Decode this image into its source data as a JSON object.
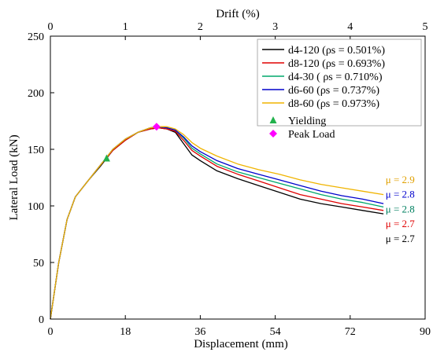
{
  "chart_data": {
    "type": "line",
    "xlabel": "Displacement (mm)",
    "ylabel": "Lateral Load (kN)",
    "x2label": "Drift (%)",
    "xlim": [
      0,
      90
    ],
    "ylim": [
      0,
      250
    ],
    "x2lim": [
      0,
      5
    ],
    "xticks": [
      "0",
      "18",
      "36",
      "54",
      "72",
      "90"
    ],
    "yticks": [
      "0",
      "50",
      "100",
      "150",
      "200",
      "250"
    ],
    "x2ticks": [
      "0",
      "1",
      "2",
      "3",
      "4",
      "5"
    ],
    "grid": false,
    "legend_position": "top-right",
    "series": [
      {
        "name": "d4-120 (ρs = 0.501%)",
        "color": "#000000",
        "x": [
          0,
          2,
          4,
          6,
          9,
          12,
          15,
          18,
          21,
          24,
          26,
          28,
          30,
          32,
          34,
          36,
          40,
          45,
          50,
          55,
          60,
          65,
          70,
          75,
          80
        ],
        "y": [
          0,
          50,
          88,
          108,
          122,
          135,
          149,
          158,
          165,
          168,
          169,
          168,
          165,
          155,
          145,
          140,
          131,
          124,
          118,
          112,
          106,
          102,
          99,
          96,
          93
        ]
      },
      {
        "name": "d8-120 (ρs = 0.693%)",
        "color": "#e00000",
        "x": [
          0,
          2,
          4,
          6,
          9,
          12,
          15,
          18,
          21,
          24,
          26,
          28,
          30,
          32,
          34,
          36,
          40,
          45,
          50,
          55,
          60,
          65,
          70,
          75,
          80
        ],
        "y": [
          0,
          50,
          88,
          108,
          122,
          136,
          149,
          158,
          165,
          168,
          169,
          168,
          166,
          158,
          149,
          144,
          135,
          128,
          122,
          116,
          110,
          106,
          102,
          99,
          96
        ]
      },
      {
        "name": "d4-30 ( ρs = 0.710%)",
        "color": "#00a86b",
        "x": [
          0,
          2,
          4,
          6,
          9,
          12,
          15,
          18,
          21,
          24,
          26,
          28,
          30,
          32,
          34,
          36,
          40,
          45,
          50,
          55,
          60,
          65,
          70,
          75,
          80
        ],
        "y": [
          0,
          50,
          88,
          108,
          122,
          136,
          150,
          159,
          165,
          169,
          170,
          169,
          167,
          160,
          151,
          146,
          137,
          130,
          125,
          120,
          115,
          110,
          106,
          103,
          99
        ]
      },
      {
        "name": "d6-60 (ρs = 0.737%)",
        "color": "#0000cc",
        "x": [
          0,
          2,
          4,
          6,
          9,
          12,
          15,
          18,
          21,
          24,
          26,
          28,
          30,
          32,
          34,
          36,
          40,
          45,
          50,
          55,
          60,
          65,
          70,
          75,
          80
        ],
        "y": [
          0,
          50,
          88,
          108,
          122,
          136,
          150,
          159,
          165,
          169,
          170,
          169,
          167,
          161,
          153,
          148,
          140,
          133,
          128,
          123,
          118,
          113,
          109,
          106,
          102
        ]
      },
      {
        "name": "d8-60 (ρs = 0.973%)",
        "color": "#f0b400",
        "x": [
          0,
          2,
          4,
          6,
          9,
          12,
          15,
          18,
          21,
          24,
          26,
          28,
          30,
          32,
          34,
          36,
          40,
          45,
          50,
          55,
          60,
          65,
          70,
          75,
          80
        ],
        "y": [
          0,
          50,
          88,
          108,
          122,
          136,
          150,
          159,
          165,
          169,
          170,
          170,
          168,
          163,
          156,
          151,
          144,
          137,
          132,
          128,
          123,
          119,
          116,
          113,
          110
        ]
      }
    ],
    "markers": [
      {
        "name": "Yielding",
        "shape": "triangle",
        "color": "#22b14c",
        "x": 13.5,
        "y": 142
      },
      {
        "name": "Peak Load",
        "shape": "diamond",
        "color": "#ff00ff",
        "x": 25.5,
        "y": 170
      }
    ],
    "annotations": [
      {
        "text": "μ = 2.9",
        "color": "#e0a000",
        "x": 80.5,
        "y": 123
      },
      {
        "text": "μ = 2.8",
        "color": "#0000cc",
        "x": 80.5,
        "y": 110
      },
      {
        "text": "μ = 2.8",
        "color": "#008060",
        "x": 80.5,
        "y": 97
      },
      {
        "text": "μ = 2.7",
        "color": "#e00000",
        "x": 80.5,
        "y": 84
      },
      {
        "text": "μ = 2.7",
        "color": "#000000",
        "x": 80.5,
        "y": 71
      }
    ]
  }
}
